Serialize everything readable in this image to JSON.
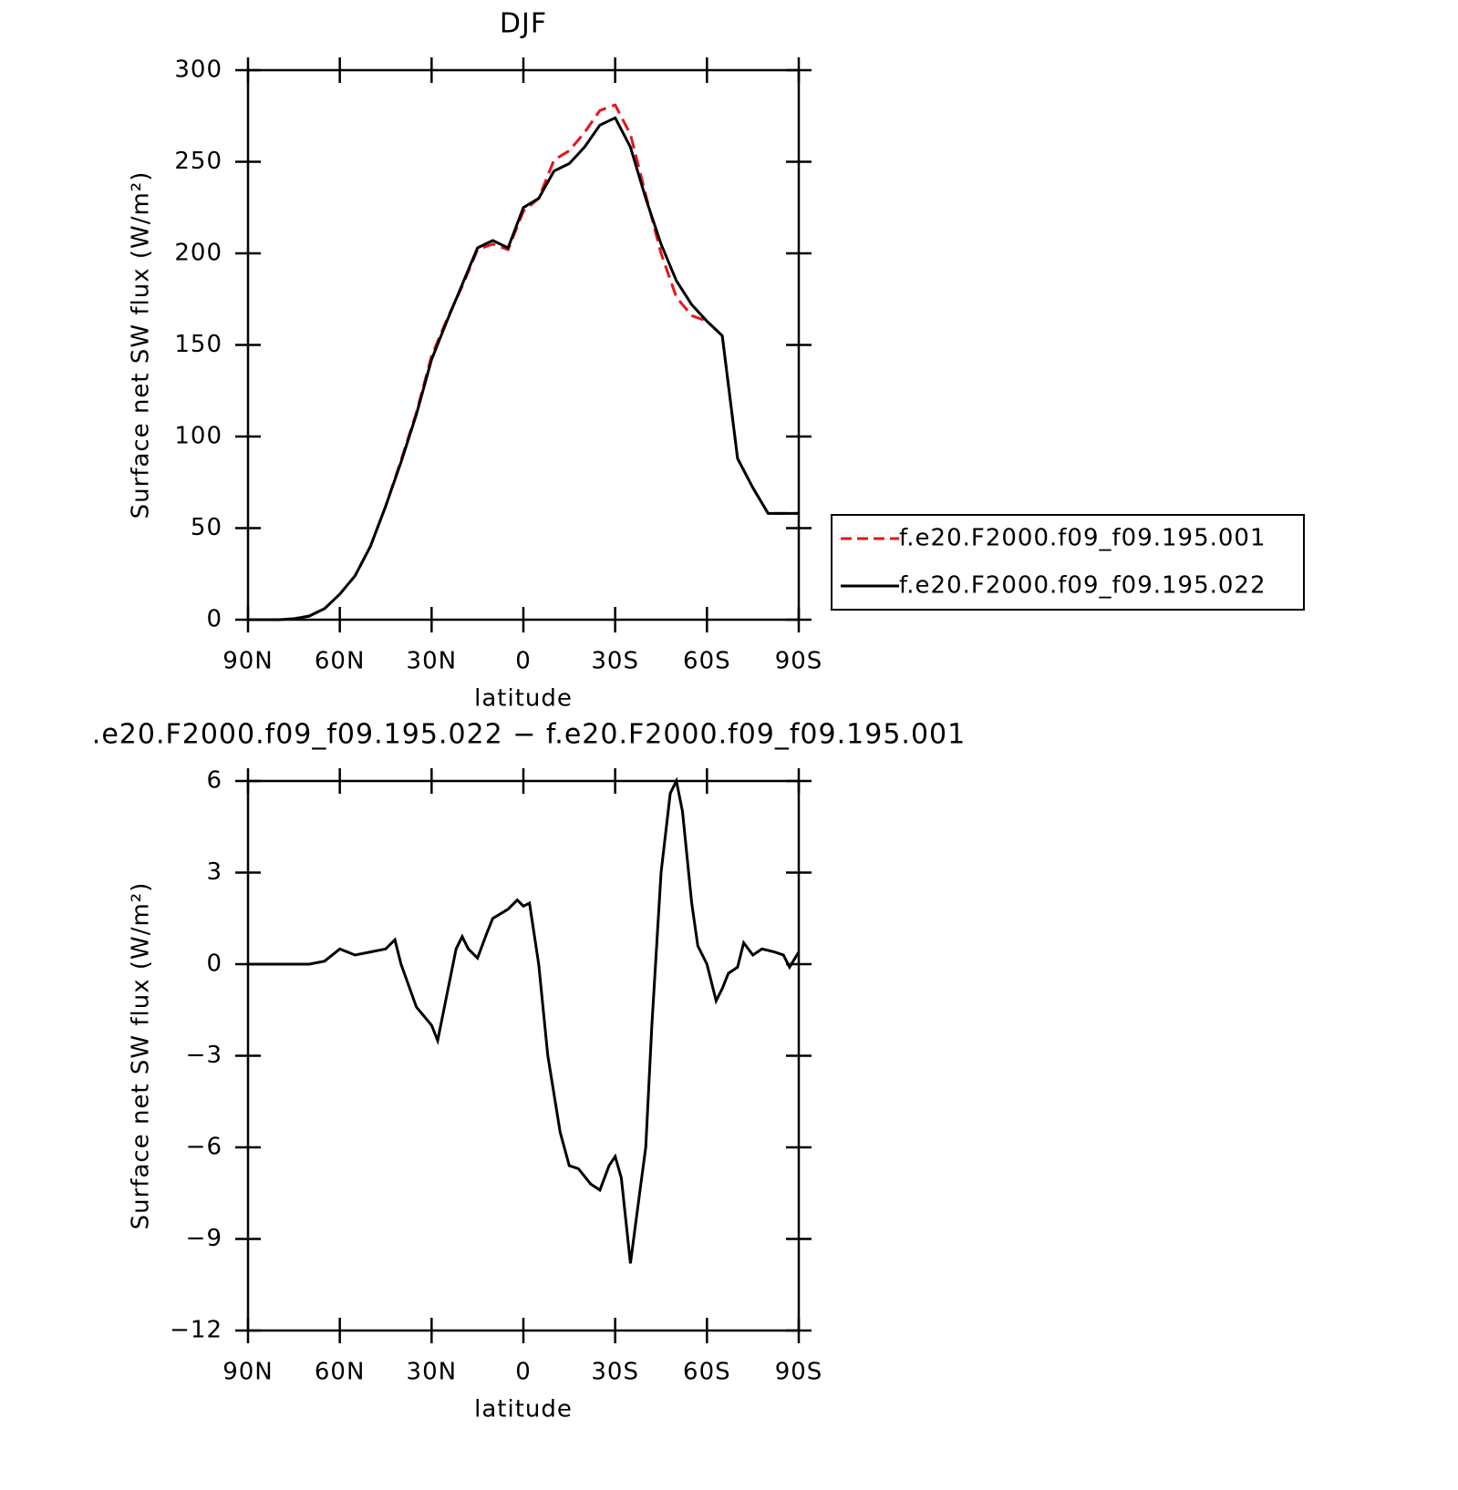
{
  "chart_data": [
    {
      "type": "line",
      "title": "DJF",
      "x_label": "latitude",
      "y_label": "Surface net SW flux (W/m²)",
      "xlim": [
        90,
        -90
      ],
      "xticks": [
        {
          "value": 90,
          "label": "90N"
        },
        {
          "value": 60,
          "label": "60N"
        },
        {
          "value": 30,
          "label": "30N"
        },
        0,
        {
          "value": -30,
          "label": "30S"
        },
        {
          "value": -60,
          "label": "60S"
        },
        {
          "value": -90,
          "label": "90S"
        }
      ],
      "ylim": [
        0,
        300
      ],
      "yticks": [
        0,
        50,
        100,
        150,
        200,
        250,
        300
      ],
      "legend": "right",
      "x": [
        90,
        85,
        80,
        75,
        70,
        65,
        60,
        55,
        50,
        45,
        40,
        35,
        30,
        25,
        20,
        15,
        10,
        5,
        0,
        -5,
        -10,
        -15,
        -20,
        -25,
        -30,
        -35,
        -40,
        -45,
        -50,
        -55,
        -60,
        -65,
        -70,
        -75,
        -80,
        -85,
        -90
      ],
      "series": [
        {
          "name": "f.e20.F2000.f09_f09.195.001",
          "color": "#e8141c",
          "dashed": true,
          "values": [
            0,
            0,
            0,
            0.5,
            2,
            6,
            14,
            24,
            40,
            62,
            87,
            113,
            144,
            164,
            182,
            202,
            205,
            202,
            223,
            230,
            251,
            256,
            266,
            278,
            281,
            265,
            232,
            200,
            176,
            166,
            163,
            155,
            88,
            72,
            58,
            58,
            58
          ]
        },
        {
          "name": "f.e20.F2000.f09_f09.195.022",
          "color": "#000000",
          "dashed": false,
          "values": [
            0,
            0,
            0,
            0.5,
            2,
            6,
            14,
            24,
            40,
            62,
            86,
            112,
            142,
            163,
            183,
            203,
            207,
            203,
            225,
            230,
            245,
            249,
            258,
            270,
            274,
            258,
            230,
            205,
            185,
            172,
            163,
            155,
            88,
            72,
            58,
            58,
            58
          ]
        }
      ]
    },
    {
      "type": "line",
      "title": ".e20.F2000.f09_f09.195.022 − f.e20.F2000.f09_f09.195.001",
      "x_label": "latitude",
      "y_label": "Surface net SW flux (W/m²)",
      "xlim": [
        90,
        -90
      ],
      "xticks": [
        {
          "value": 90,
          "label": "90N"
        },
        {
          "value": 60,
          "label": "60N"
        },
        {
          "value": 30,
          "label": "30N"
        },
        0,
        {
          "value": -30,
          "label": "30S"
        },
        {
          "value": -60,
          "label": "60S"
        },
        {
          "value": -90,
          "label": "90S"
        }
      ],
      "ylim": [
        -12,
        6
      ],
      "yticks": [
        {
          "value": -12,
          "label": "−12"
        },
        {
          "value": -9,
          "label": "−9"
        },
        {
          "value": -6,
          "label": "−6"
        },
        {
          "value": -3,
          "label": "−3"
        },
        0,
        3,
        6
      ],
      "x": [
        90,
        85,
        80,
        75,
        70,
        65,
        60,
        55,
        50,
        45,
        42,
        40,
        35,
        30,
        28,
        25,
        22,
        20,
        18,
        15,
        12,
        10,
        5,
        2,
        0,
        -2,
        -5,
        -8,
        -12,
        -15,
        -18,
        -22,
        -25,
        -28,
        -30,
        -32,
        -35,
        -38,
        -40,
        -42,
        -45,
        -48,
        -50,
        -52,
        -55,
        -57,
        -60,
        -63,
        -65,
        -67,
        -70,
        -72,
        -75,
        -78,
        -82,
        -85,
        -87,
        -90
      ],
      "series": [
        {
          "color": "#000000",
          "dashed": false,
          "values": [
            0,
            0,
            0,
            0,
            0,
            0.1,
            0.5,
            0.3,
            0.4,
            0.5,
            0.8,
            0,
            -1.4,
            -2,
            -2.5,
            -1,
            0.5,
            0.9,
            0.5,
            0.2,
            1.0,
            1.5,
            1.8,
            2.1,
            1.9,
            2.0,
            0,
            -3,
            -5.5,
            -6.6,
            -6.7,
            -7.2,
            -7.4,
            -6.6,
            -6.3,
            -7,
            -9.8,
            -7.5,
            -6,
            -2,
            3,
            5.6,
            6,
            5,
            2,
            0.6,
            0,
            -1.2,
            -0.8,
            -0.3,
            -0.1,
            0.7,
            0.3,
            0.5,
            0.4,
            0.3,
            -0.1,
            0.4
          ]
        }
      ]
    }
  ]
}
